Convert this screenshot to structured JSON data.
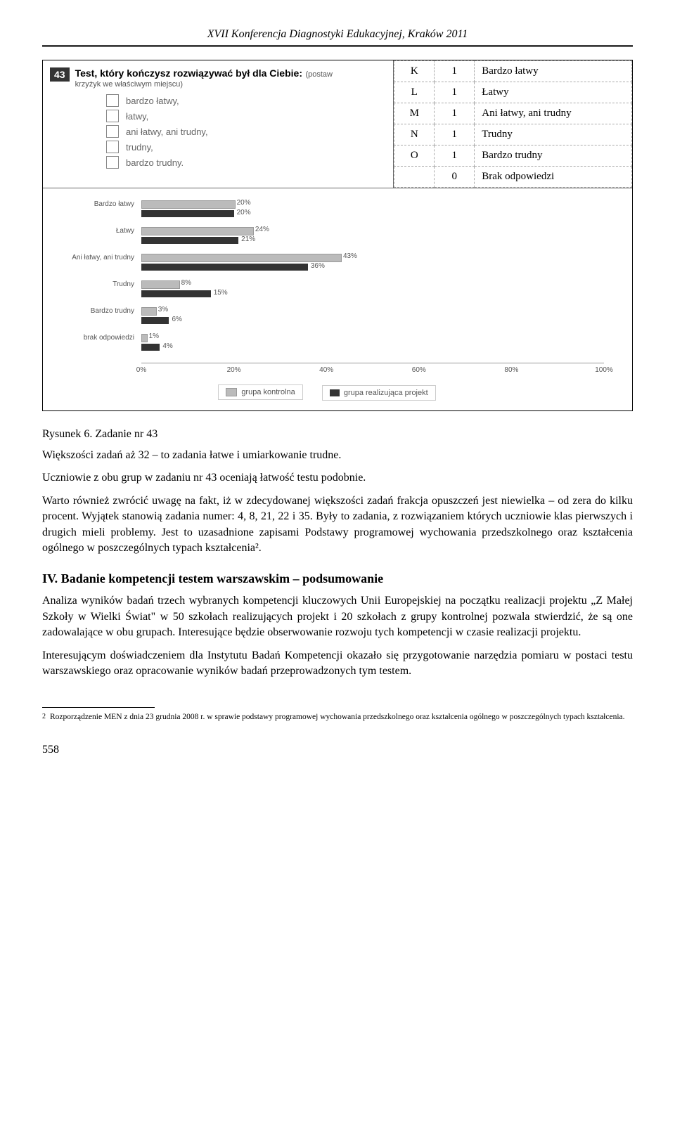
{
  "header": {
    "title": "XVII Konferencja Diagnostyki Edukacyjnej, Kraków 2011"
  },
  "question": {
    "number": "43",
    "title_bold": "Test, który kończysz rozwiązywać był dla Ciebie:",
    "title_note": "(postaw",
    "subtitle": "krzyżyk we właściwym miejscu)",
    "options": [
      "bardzo łatwy,",
      "łatwy,",
      "ani łatwy, ani trudny,",
      "trudny,",
      "bardzo trudny."
    ]
  },
  "key_table": {
    "rows": [
      [
        "K",
        "1",
        "Bardzo łatwy"
      ],
      [
        "L",
        "1",
        "Łatwy"
      ],
      [
        "M",
        "1",
        "Ani łatwy, ani trudny"
      ],
      [
        "N",
        "1",
        "Trudny"
      ],
      [
        "O",
        "1",
        "Bardzo trudny"
      ],
      [
        "",
        "0",
        "Brak odpowiedzi"
      ]
    ]
  },
  "chart": {
    "categories": [
      "Bardzo łatwy",
      "Łatwy",
      "Ani łatwy, ani trudny",
      "Trudny",
      "Bardzo trudny",
      "brak odpowiedzi"
    ],
    "series": {
      "kontrolna": {
        "label": "grupa kontrolna",
        "color": "#bbbbbb",
        "border": "#999999",
        "values": [
          20,
          24,
          43,
          8,
          3,
          1
        ]
      },
      "projekt": {
        "label": "grupa realizująca projekt",
        "color": "#333333",
        "values": [
          20,
          21,
          36,
          15,
          6,
          4
        ]
      }
    },
    "xticks": [
      "0%",
      "20%",
      "40%",
      "60%",
      "80%",
      "100%"
    ],
    "xmax": 100
  },
  "caption": "Rysunek 6. Zadanie nr 43",
  "para1": "Większości zadań aż 32 – to zadania łatwe i umiarkowanie trudne.",
  "para2": "Uczniowie z obu grup w zadaniu nr 43 oceniają łatwość testu podobnie.",
  "para3": "Warto również zwrócić uwagę na fakt, iż w zdecydowanej większości zadań frakcja opuszczeń jest niewielka – od zera do kilku procent. Wyjątek stanowią zadania numer: 4, 8, 21, 22 i 35. Były to zadania, z rozwiązaniem których uczniowie klas pierwszych i drugich mieli problemy. Jest to uzasadnione zapisami Podstawy programowej wychowania przedszkolnego oraz kształcenia ogólnego w poszczególnych typach kształcenia².",
  "section_title": "IV. Badanie kompetencji testem warszawskim – podsumowanie",
  "para4": "Analiza wyników badań trzech wybranych kompetencji kluczowych Unii Europejskiej na początku realizacji projektu „Z Małej Szkoły w Wielki Świat\" w 50 szkołach realizujących projekt i 20 szkołach z grupy kontrolnej pozwala stwierdzić, że są one zadowalające w obu grupach. Interesujące będzie obserwowanie rozwoju tych kompetencji w czasie realizacji projektu.",
  "para5": "Interesującym doświadczeniem dla Instytutu Badań Kompetencji okazało się przygotowanie narzędzia pomiaru w postaci testu warszawskiego oraz opracowanie wyników badań przeprowadzonych tym testem.",
  "footnote": {
    "num": "2",
    "text": "Rozporządzenie MEN z dnia 23 grudnia 2008 r. w sprawie podstawy programowej wychowania przedszkolnego oraz kształcenia ogólnego w poszczególnych typach kształcenia."
  },
  "page_number": "558"
}
